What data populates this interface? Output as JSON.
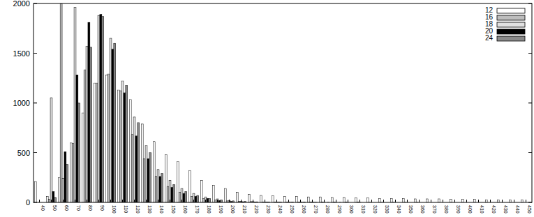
{
  "chart_data": {
    "type": "bar",
    "categories": [
      40,
      50,
      60,
      70,
      80,
      90,
      100,
      110,
      120,
      130,
      140,
      150,
      160,
      170,
      180,
      190,
      200,
      210,
      220,
      230,
      240,
      250,
      260,
      270,
      280,
      290,
      300,
      310,
      320,
      330,
      340,
      350,
      360,
      370,
      380,
      390,
      400,
      410,
      420,
      430,
      440,
      450
    ],
    "series": [
      {
        "name": "12",
        "color": "#ffffff",
        "values": [
          210,
          60,
          250,
          600,
          900,
          1200,
          1280,
          1130,
          1030,
          790,
          610,
          480,
          410,
          320,
          220,
          170,
          140,
          100,
          80,
          70,
          65,
          60,
          60,
          55,
          55,
          50,
          50,
          45,
          45,
          40,
          40,
          40,
          35,
          35,
          35,
          30,
          30,
          30,
          25,
          25,
          25,
          25
        ]
      },
      {
        "name": "16",
        "color": "#bdbdbd",
        "values": [
          0,
          30,
          2000,
          590,
          1330,
          1200,
          1290,
          1120,
          680,
          440,
          260,
          160,
          100,
          60,
          40,
          25,
          15,
          10,
          8,
          5,
          5,
          4,
          4,
          3,
          3,
          2,
          2,
          2,
          1,
          1,
          1,
          1,
          1,
          0,
          0,
          0,
          0,
          0,
          0,
          0,
          0,
          0
        ]
      },
      {
        "name": "18",
        "color": "#e0e0e0",
        "values": [
          0,
          1050,
          240,
          1960,
          1570,
          1880,
          1650,
          1220,
          860,
          570,
          330,
          220,
          140,
          90,
          55,
          35,
          20,
          12,
          8,
          5,
          4,
          3,
          2,
          2,
          1,
          1,
          1,
          1,
          0,
          0,
          0,
          0,
          0,
          0,
          0,
          0,
          0,
          0,
          0,
          0,
          0,
          0
        ]
      },
      {
        "name": "20",
        "color": "#000000",
        "values": [
          0,
          110,
          510,
          1280,
          1810,
          1890,
          1540,
          1100,
          670,
          440,
          260,
          150,
          90,
          60,
          40,
          20,
          10,
          6,
          4,
          3,
          2,
          1,
          1,
          1,
          0,
          0,
          0,
          0,
          0,
          0,
          0,
          0,
          0,
          0,
          0,
          0,
          0,
          0,
          0,
          0,
          0,
          0
        ]
      },
      {
        "name": "24",
        "color": "#8a8a8a",
        "values": [
          0,
          50,
          380,
          1000,
          1560,
          1870,
          1600,
          1180,
          800,
          500,
          290,
          180,
          110,
          70,
          40,
          25,
          15,
          10,
          6,
          4,
          3,
          2,
          2,
          1,
          1,
          1,
          0,
          0,
          0,
          0,
          0,
          0,
          0,
          0,
          0,
          0,
          0,
          0,
          0,
          0,
          0,
          0
        ]
      }
    ],
    "ylim": [
      0,
      2000
    ],
    "yticks": [
      0,
      500,
      1000,
      1500,
      2000
    ],
    "legend": "upper right"
  }
}
